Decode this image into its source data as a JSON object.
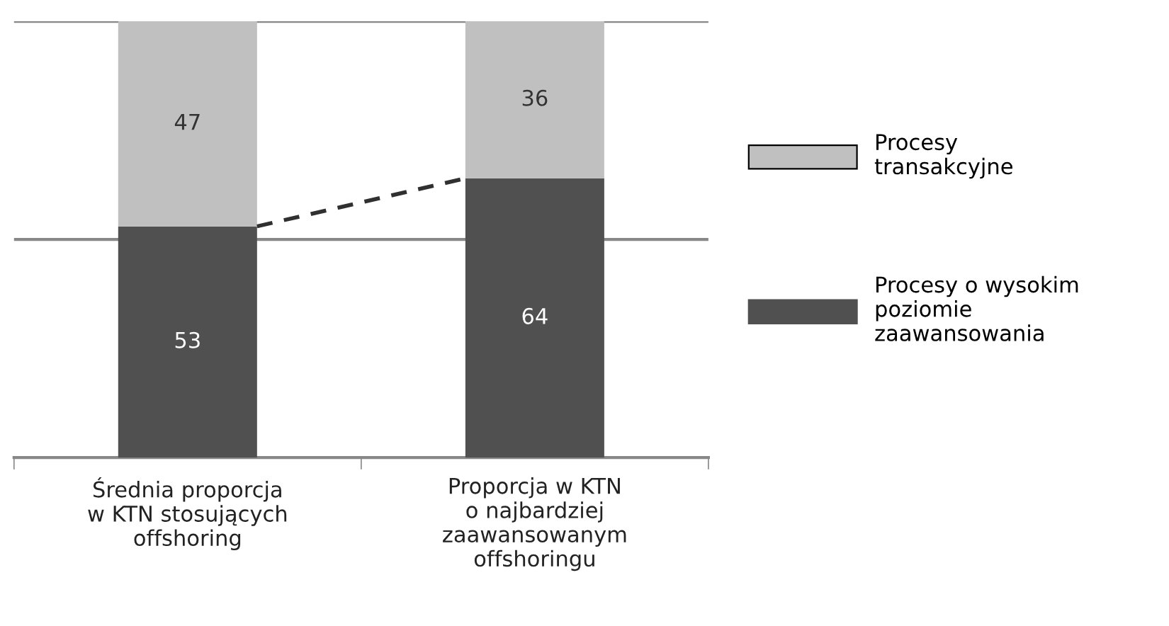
{
  "chart_data": {
    "type": "bar",
    "stacked": true,
    "categories": [
      "Średnia proporcja\nw KTN stosujących\noffshoring",
      "Proporcja w KTN\no najbardziej\nzaawansowanym\noffshoringu"
    ],
    "series": [
      {
        "name": "Procesy o wysokim\npoziomie\nzaawansowania",
        "color": "#505050",
        "values": [
          53,
          64
        ]
      },
      {
        "name": "Procesy\ntransakcyjne",
        "color": "#c0c0c0",
        "values": [
          47,
          36
        ]
      }
    ],
    "ylim": [
      0,
      100
    ],
    "ref_lines": [
      {
        "axis": "y",
        "value": 50,
        "color": "#888888"
      },
      {
        "axis": "y",
        "value": 100,
        "color": "#888888"
      }
    ],
    "tick_labels": "x",
    "data_labels": true,
    "legend": "right"
  }
}
